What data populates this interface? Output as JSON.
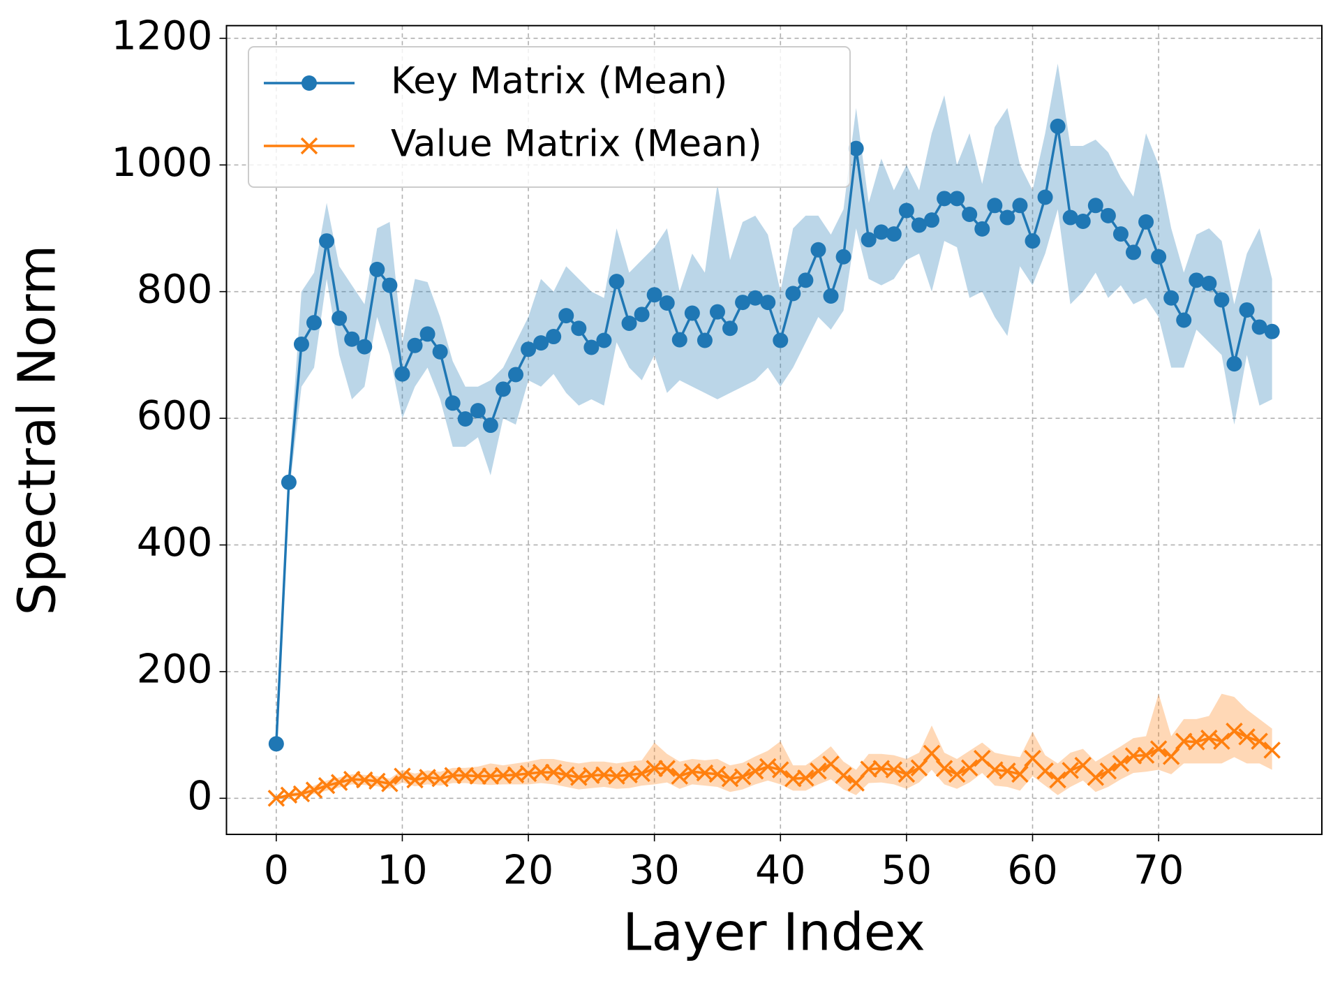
{
  "chart_data": {
    "type": "line",
    "xlabel": "Layer Index",
    "ylabel": "Spectral Norm",
    "x": [
      0,
      1,
      2,
      3,
      4,
      5,
      6,
      7,
      8,
      9,
      10,
      11,
      12,
      13,
      14,
      15,
      16,
      17,
      18,
      19,
      20,
      21,
      22,
      23,
      24,
      25,
      26,
      27,
      28,
      29,
      30,
      31,
      32,
      33,
      34,
      35,
      36,
      37,
      38,
      39,
      40,
      41,
      42,
      43,
      44,
      45,
      46,
      47,
      48,
      49,
      50,
      51,
      52,
      53,
      54,
      55,
      56,
      57,
      58,
      59,
      60,
      61,
      62,
      63,
      64,
      65,
      66,
      67,
      68,
      69,
      70,
      71,
      72,
      73,
      74,
      75,
      76,
      77,
      78,
      79
    ],
    "xlim": [
      -3.95,
      82.95
    ],
    "xticks": [
      0,
      10,
      20,
      30,
      40,
      50,
      60,
      70
    ],
    "ylim": [
      -57,
      1220
    ],
    "yticks": [
      0,
      200,
      400,
      600,
      800,
      1000,
      1200
    ],
    "grid": true,
    "legend": "upper left",
    "series": [
      {
        "name": "Key Matrix (Mean)",
        "color": "#1f77b4",
        "marker": "o",
        "values": [
          86,
          499,
          717,
          751,
          880,
          758,
          725,
          713,
          835,
          810,
          670,
          715,
          733,
          705,
          624,
          599,
          612,
          589,
          646,
          669,
          709,
          719,
          729,
          762,
          742,
          712,
          723,
          816,
          750,
          764,
          795,
          782,
          724,
          766,
          723,
          768,
          742,
          783,
          790,
          783,
          723,
          797,
          818,
          866,
          793,
          855,
          1026,
          882,
          894,
          891,
          928,
          905,
          913,
          947,
          947,
          922,
          899,
          936,
          917,
          936,
          880,
          949,
          1061,
          917,
          911,
          936,
          920,
          891,
          862,
          910,
          855,
          790,
          755,
          818,
          813,
          787,
          686,
          771,
          744,
          737
        ],
        "lower": [
          81,
          479,
          650,
          680,
          820,
          700,
          630,
          650,
          760,
          700,
          600,
          650,
          680,
          630,
          555,
          555,
          570,
          510,
          600,
          590,
          660,
          650,
          670,
          640,
          620,
          630,
          620,
          720,
          680,
          660,
          700,
          640,
          660,
          650,
          640,
          630,
          640,
          650,
          660,
          680,
          650,
          680,
          720,
          760,
          740,
          770,
          900,
          820,
          810,
          820,
          850,
          860,
          800,
          880,
          870,
          790,
          800,
          760,
          730,
          840,
          810,
          860,
          930,
          780,
          800,
          830,
          790,
          810,
          780,
          790,
          760,
          680,
          680,
          740,
          720,
          700,
          590,
          700,
          620,
          630
        ],
        "upper": [
          91,
          519,
          800,
          830,
          940,
          840,
          810,
          780,
          900,
          910,
          720,
          820,
          815,
          760,
          690,
          650,
          650,
          660,
          680,
          720,
          760,
          820,
          800,
          840,
          820,
          800,
          790,
          900,
          830,
          850,
          870,
          900,
          800,
          860,
          830,
          970,
          850,
          910,
          920,
          890,
          800,
          900,
          920,
          920,
          890,
          930,
          1090,
          940,
          1010,
          960,
          1000,
          960,
          1050,
          1110,
          1000,
          1050,
          970,
          1060,
          1090,
          1000,
          960,
          1050,
          1160,
          1030,
          1030,
          1040,
          1020,
          980,
          950,
          1050,
          1000,
          900,
          830,
          890,
          900,
          880,
          780,
          860,
          900,
          820
        ]
      },
      {
        "name": "Value Matrix (Mean)",
        "color": "#ff7f0e",
        "marker": "x",
        "values": [
          0,
          5,
          7,
          13,
          20,
          25,
          30,
          29,
          27,
          23,
          35,
          29,
          33,
          31,
          36,
          36,
          35,
          35,
          36,
          37,
          39,
          41,
          41,
          37,
          33,
          36,
          37,
          35,
          37,
          39,
          47,
          47,
          35,
          42,
          40,
          38,
          31,
          34,
          43,
          50,
          45,
          31,
          32,
          43,
          54,
          36,
          24,
          46,
          47,
          45,
          38,
          48,
          71,
          47,
          38,
          48,
          63,
          45,
          43,
          38,
          63,
          43,
          29,
          44,
          52,
          33,
          43,
          55,
          67,
          68,
          78,
          66,
          90,
          89,
          95,
          90,
          106,
          97,
          90,
          76
        ],
        "lower": [
          0,
          2,
          3,
          7,
          12,
          17,
          22,
          21,
          19,
          15,
          25,
          19,
          22,
          20,
          24,
          24,
          22,
          21,
          22,
          22,
          22,
          24,
          22,
          18,
          14,
          16,
          18,
          15,
          16,
          20,
          22,
          25,
          15,
          22,
          20,
          18,
          10,
          14,
          22,
          28,
          22,
          12,
          12,
          22,
          30,
          14,
          5,
          24,
          25,
          22,
          15,
          25,
          45,
          22,
          15,
          25,
          40,
          20,
          18,
          12,
          35,
          20,
          5,
          18,
          28,
          10,
          18,
          30,
          40,
          42,
          45,
          38,
          55,
          55,
          55,
          55,
          65,
          55,
          55,
          45
        ],
        "upper": [
          2,
          8,
          12,
          20,
          28,
          33,
          38,
          37,
          35,
          31,
          45,
          39,
          44,
          42,
          48,
          48,
          50,
          55,
          52,
          55,
          58,
          62,
          62,
          58,
          55,
          58,
          58,
          55,
          58,
          60,
          88,
          70,
          58,
          62,
          60,
          62,
          52,
          56,
          66,
          75,
          90,
          52,
          52,
          66,
          82,
          58,
          45,
          70,
          70,
          68,
          62,
          72,
          115,
          72,
          62,
          75,
          88,
          72,
          68,
          65,
          105,
          68,
          55,
          72,
          78,
          58,
          70,
          82,
          95,
          98,
          165,
          98,
          125,
          125,
          130,
          165,
          160,
          140,
          125,
          110
        ]
      }
    ]
  }
}
